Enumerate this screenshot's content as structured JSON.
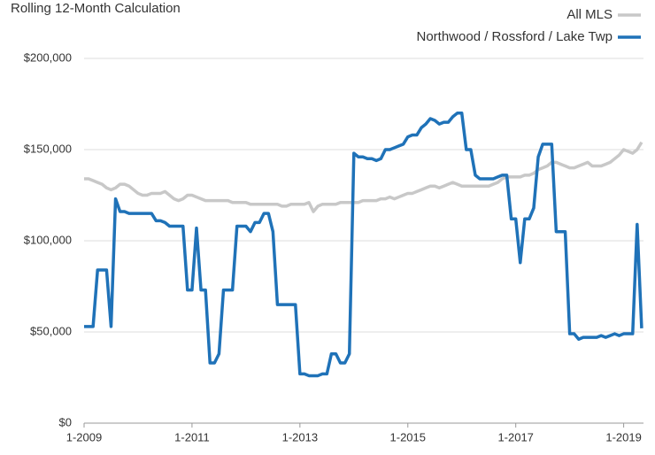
{
  "chart_data": {
    "type": "line",
    "title": "Rolling 12-Month Calculation",
    "categories": [
      "1-2009",
      null,
      null,
      null,
      null,
      null,
      null,
      null,
      null,
      null,
      null,
      null,
      null,
      null,
      null,
      null,
      null,
      null,
      null,
      null,
      null,
      null,
      null,
      null,
      "1-2011",
      null,
      null,
      null,
      null,
      null,
      null,
      null,
      null,
      null,
      null,
      null,
      null,
      null,
      null,
      null,
      null,
      null,
      null,
      null,
      null,
      null,
      null,
      null,
      "1-2013",
      null,
      null,
      null,
      null,
      null,
      null,
      null,
      null,
      null,
      null,
      null,
      null,
      null,
      null,
      null,
      null,
      null,
      null,
      null,
      null,
      null,
      null,
      null,
      "1-2015",
      null,
      null,
      null,
      null,
      null,
      null,
      null,
      null,
      null,
      null,
      null,
      null,
      null,
      null,
      null,
      null,
      null,
      null,
      null,
      null,
      null,
      null,
      null,
      "1-2017",
      null,
      null,
      null,
      null,
      null,
      null,
      null,
      null,
      null,
      null,
      null,
      null,
      null,
      null,
      null,
      null,
      null,
      null,
      null,
      null,
      null,
      null,
      null,
      "1-2019",
      null,
      null,
      null,
      null
    ],
    "series": [
      {
        "name": "All MLS",
        "color": "#c8c8c8",
        "values": [
          134000,
          134000,
          133000,
          132000,
          131000,
          129000,
          128000,
          129000,
          131000,
          131000,
          130000,
          128000,
          126000,
          125000,
          125000,
          126000,
          126000,
          126000,
          127000,
          125000,
          123000,
          122000,
          123000,
          125000,
          125000,
          124000,
          123000,
          122000,
          122000,
          122000,
          122000,
          122000,
          122000,
          121000,
          121000,
          121000,
          121000,
          120000,
          120000,
          120000,
          120000,
          120000,
          120000,
          120000,
          119000,
          119000,
          120000,
          120000,
          120000,
          120000,
          121000,
          116000,
          119000,
          120000,
          120000,
          120000,
          120000,
          121000,
          121000,
          121000,
          121000,
          121000,
          122000,
          122000,
          122000,
          122000,
          123000,
          123000,
          124000,
          123000,
          124000,
          125000,
          126000,
          126000,
          127000,
          128000,
          129000,
          130000,
          130000,
          129000,
          130000,
          131000,
          132000,
          131000,
          130000,
          130000,
          130000,
          130000,
          130000,
          130000,
          130000,
          131000,
          132000,
          134000,
          135000,
          135000,
          135000,
          135000,
          136000,
          136000,
          137000,
          139000,
          140000,
          141000,
          143000,
          143000,
          142000,
          141000,
          140000,
          140000,
          141000,
          142000,
          143000,
          141000,
          141000,
          141000,
          142000,
          143000,
          145000,
          147000,
          150000,
          149000,
          148000,
          150000,
          154000
        ]
      },
      {
        "name": "Northwood / Rossford / Lake Twp",
        "color": "#1f72b8",
        "values": [
          53000,
          53000,
          53000,
          84000,
          84000,
          84000,
          53000,
          123000,
          116000,
          116000,
          115000,
          115000,
          115000,
          115000,
          115000,
          115000,
          111000,
          111000,
          110000,
          108000,
          108000,
          108000,
          108000,
          73000,
          73000,
          107000,
          73000,
          73000,
          33000,
          33000,
          38000,
          73000,
          73000,
          73000,
          108000,
          108000,
          108000,
          105000,
          110000,
          110000,
          115000,
          115000,
          105000,
          65000,
          65000,
          65000,
          65000,
          65000,
          27000,
          27000,
          26000,
          26000,
          26000,
          27000,
          27000,
          38000,
          38000,
          33000,
          33000,
          38000,
          148000,
          146000,
          146000,
          145000,
          145000,
          144000,
          145000,
          150000,
          150000,
          151000,
          152000,
          153000,
          157000,
          158000,
          158000,
          162000,
          164000,
          167000,
          166000,
          164000,
          165000,
          165000,
          168000,
          170000,
          170000,
          150000,
          150000,
          136000,
          134000,
          134000,
          134000,
          134000,
          135000,
          136000,
          136000,
          112000,
          112000,
          88000,
          112000,
          112000,
          118000,
          146000,
          153000,
          153000,
          153000,
          105000,
          105000,
          105000,
          49000,
          49000,
          46000,
          47000,
          47000,
          47000,
          47000,
          48000,
          47000,
          48000,
          49000,
          48000,
          49000,
          49000,
          49000,
          109000,
          52000
        ]
      }
    ],
    "ylim": [
      0,
      200000
    ],
    "yticks": [
      {
        "value": 0,
        "label": "$0"
      },
      {
        "value": 50000,
        "label": "$50,000"
      },
      {
        "value": 100000,
        "label": "$100,000"
      },
      {
        "value": 150000,
        "label": "$150,000"
      },
      {
        "value": 200000,
        "label": "$200,000"
      }
    ],
    "grid": true,
    "legend": "top-right"
  }
}
